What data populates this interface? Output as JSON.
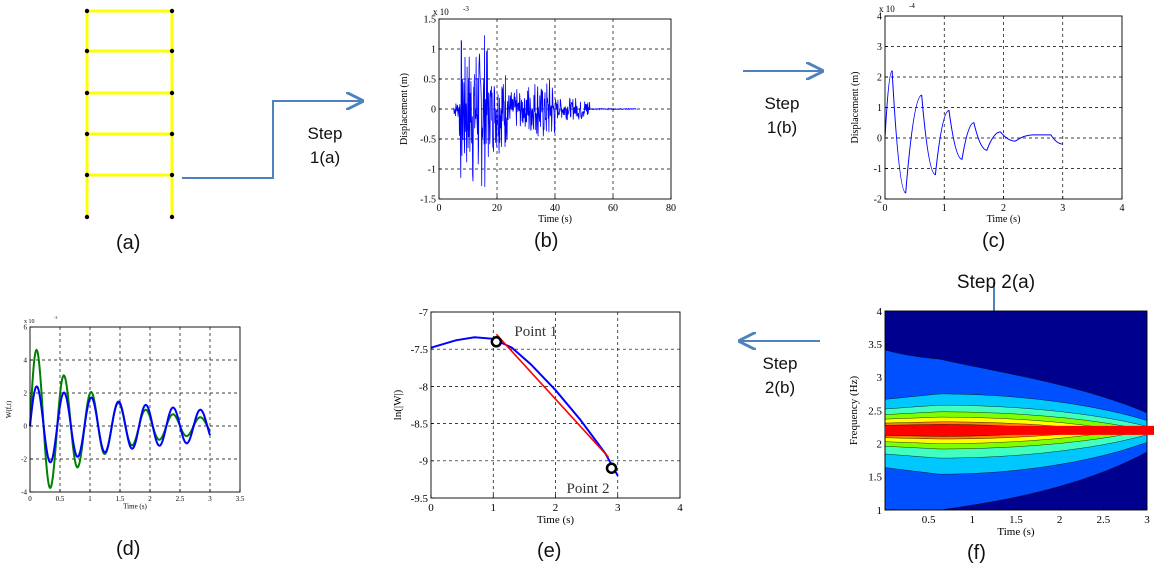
{
  "captions": {
    "a": "(a)",
    "b": "(b)",
    "c": "(c)",
    "d": "(d)",
    "e": "(e)",
    "f": "(f)"
  },
  "steps": {
    "s1a": [
      "Step",
      "1(a)"
    ],
    "s1b": [
      "Step",
      "1(b)"
    ],
    "s2a": "Step 2(a)",
    "s2b": [
      "Step",
      "2(b)"
    ]
  },
  "colors": {
    "frame": "#FFFF00",
    "node": "#000000",
    "arrow": "#4F81BD",
    "signal": "#0000FF",
    "green": "#008000",
    "fit": "#FF0000",
    "band": "#FF0000"
  },
  "chart_data": [
    {
      "id": "b",
      "type": "line",
      "ylabel": "Displacement (m)",
      "xlabel": "Time (s)",
      "exponent": "x 10",
      "exponent_power": "-3",
      "xlim": [
        0,
        80
      ],
      "ylim": [
        -1.5,
        1.5
      ],
      "xticks": [
        "0",
        "20",
        "40",
        "60",
        "80"
      ],
      "yticks": [
        "-1.5",
        "-1",
        "-0.5",
        "0",
        "0.5",
        "1",
        "1.5"
      ],
      "signal_extent": [
        5,
        68
      ],
      "grid": true
    },
    {
      "id": "c",
      "type": "line",
      "ylabel": "Displacement (m)",
      "xlabel": "Time (s)",
      "exponent": "x 10",
      "exponent_power": "-4",
      "xlim": [
        0,
        4
      ],
      "ylim": [
        -2,
        4
      ],
      "xticks": [
        "0",
        "1",
        "2",
        "3",
        "4"
      ],
      "yticks": [
        "-2",
        "-1",
        "0",
        "1",
        "2",
        "3",
        "4"
      ],
      "series": [
        {
          "peaks": [
            [
              0.12,
              2.2
            ],
            [
              0.35,
              -1.8
            ],
            [
              0.62,
              1.4
            ],
            [
              0.85,
              -1.2
            ],
            [
              1.08,
              0.9
            ],
            [
              1.3,
              -0.7
            ],
            [
              1.5,
              0.5
            ],
            [
              1.72,
              -0.4
            ],
            [
              1.95,
              0.2
            ],
            [
              2.2,
              -0.1
            ],
            [
              2.5,
              0.1
            ],
            [
              2.8,
              0.1
            ],
            [
              3.0,
              -0.2
            ]
          ]
        }
      ],
      "grid": true
    },
    {
      "id": "d",
      "type": "line",
      "ylabel": "W(f,t)",
      "xlabel": "Time (s)",
      "exponent": "x 10",
      "exponent_power": "-3",
      "xlim": [
        0,
        3.5
      ],
      "ylim": [
        -4,
        6
      ],
      "xticks": [
        "0",
        "0.5",
        "1",
        "1.5",
        "2",
        "2.5",
        "3",
        "3.5"
      ],
      "yticks": [
        "-4",
        "-2",
        "0",
        "2",
        "4",
        "6"
      ],
      "series": [
        {
          "color": "green",
          "amp0": 4.9,
          "decay": 0.95
        },
        {
          "color": "blue",
          "amp0": 2.1,
          "decay": 0.45
        }
      ],
      "grid": true
    },
    {
      "id": "e",
      "type": "line",
      "ylabel": "ln(|W|)",
      "xlabel": "Time (s)",
      "xlim": [
        0,
        4
      ],
      "ylim": [
        -9.5,
        -7
      ],
      "xticks": [
        "0",
        "1",
        "2",
        "3",
        "4"
      ],
      "yticks": [
        "-9.5",
        "-9",
        "-8.5",
        "-8",
        "-7.5",
        "-7"
      ],
      "curve": [
        [
          0,
          -7.48
        ],
        [
          0.4,
          -7.38
        ],
        [
          0.7,
          -7.34
        ],
        [
          1.0,
          -7.36
        ],
        [
          1.3,
          -7.48
        ],
        [
          1.6,
          -7.7
        ],
        [
          2.0,
          -8.05
        ],
        [
          2.4,
          -8.45
        ],
        [
          2.8,
          -8.9
        ],
        [
          3.0,
          -9.2
        ]
      ],
      "fit": [
        [
          1.05,
          -7.3
        ],
        [
          2.85,
          -8.95
        ]
      ],
      "points": [
        {
          "label": "Point 1",
          "x": 1.05,
          "y": -7.4
        },
        {
          "label": "Point 2",
          "x": 2.9,
          "y": -9.1
        }
      ],
      "grid": true
    },
    {
      "id": "f",
      "type": "heatmap",
      "ylabel": "Frequency (Hz)",
      "xlabel": "Time (s)",
      "xlim": [
        0,
        3
      ],
      "ylim": [
        1,
        4
      ],
      "xticks": [
        "0.5",
        "1",
        "1.5",
        "2",
        "2.5",
        "3"
      ],
      "yticks": [
        "1",
        "1.5",
        "2",
        "2.5",
        "3",
        "3.5",
        "4"
      ],
      "ridge_frequency": 2.2
    }
  ]
}
